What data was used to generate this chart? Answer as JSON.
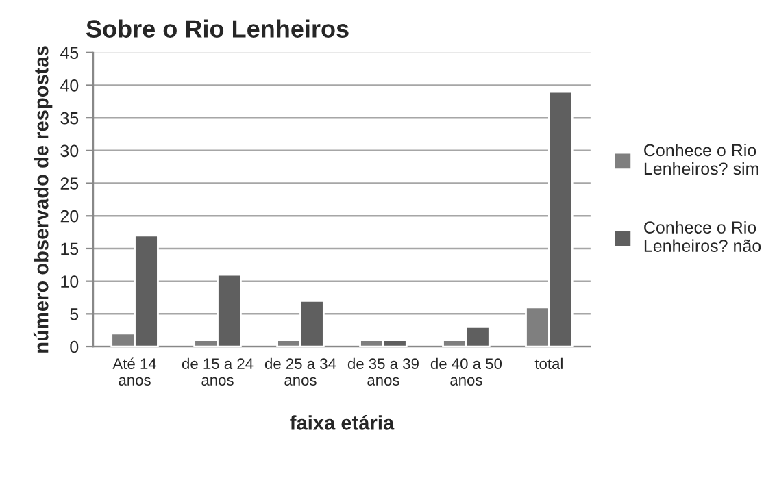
{
  "chart_data": {
    "type": "bar",
    "title": "Sobre o Rio Lenheiros",
    "xlabel": "faixa etária",
    "ylabel": "número observado de respostas",
    "categories": [
      "Até 14\nanos",
      "de 15 a 24\nanos",
      "de 25 a 34\nanos",
      "de 35 a 39\nanos",
      "de 40 a 50\nanos",
      "total"
    ],
    "series": [
      {
        "name": "Conhece o Rio\nLenheiros? sim",
        "color": "#7f7f7f",
        "values": [
          2,
          1,
          1,
          1,
          1,
          6
        ]
      },
      {
        "name": "Conhece o Rio\nLenheiros? não",
        "color": "#5f5f5f",
        "values": [
          17,
          11,
          7,
          1,
          3,
          39
        ]
      }
    ],
    "ylim": [
      0,
      45
    ],
    "yticks": [
      0,
      5,
      10,
      15,
      20,
      25,
      30,
      35,
      40,
      45
    ],
    "grid": "y",
    "legend": "right"
  }
}
